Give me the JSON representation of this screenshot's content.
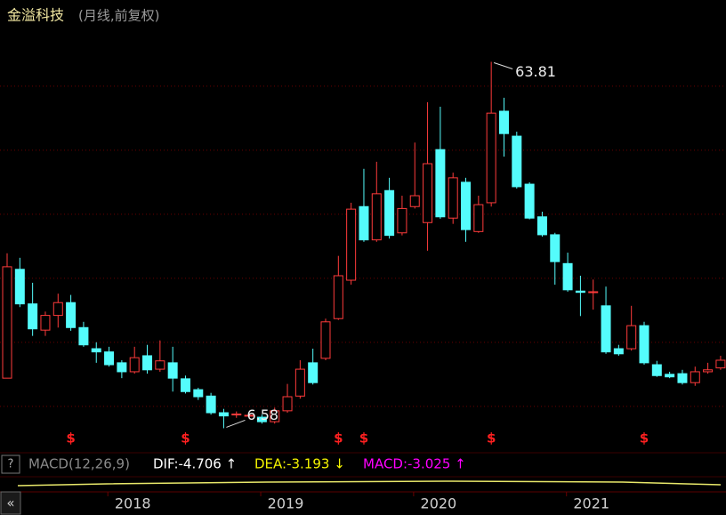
{
  "chart_data": {
    "type": "candlestick",
    "title": "金溢科技",
    "subtitle": "(月线,前复权)",
    "categories": [
      null,
      null,
      null,
      null,
      null,
      null,
      null,
      null,
      null,
      null,
      "2018",
      null,
      null,
      null,
      null,
      null,
      null,
      null,
      null,
      null,
      null,
      null,
      "2019",
      null,
      null,
      null,
      null,
      null,
      null,
      null,
      null,
      null,
      null,
      null,
      "2020",
      null,
      null,
      null,
      null,
      null,
      null,
      null,
      null,
      null,
      null,
      null,
      "2021",
      null,
      null,
      null,
      null,
      null,
      null,
      null,
      null,
      null,
      null
    ],
    "open": [
      14.4,
      31.4,
      26.0,
      21.9,
      24.2,
      26.2,
      22.3,
      19.0,
      18.5,
      16.8,
      15.4,
      17.9,
      15.8,
      16.8,
      14.3,
      12.6,
      11.6,
      9.0,
      8.7,
      8.5,
      8.3,
      7.6,
      9.3,
      11.6,
      16.8,
      17.5,
      23.7,
      29.7,
      41.2,
      36.0,
      43.7,
      37.1,
      41.2,
      38.7,
      50.1,
      39.4,
      45.0,
      37.3,
      41.8,
      56.1,
      52.2,
      44.7,
      39.6,
      36.8,
      32.3,
      28.0,
      27.8,
      25.7,
      19.0,
      19.0,
      22.6,
      16.5,
      15.0,
      15.1,
      13.7,
      15.4,
      16.0
    ],
    "high": [
      33.9,
      33.2,
      29.3,
      24.8,
      27.6,
      27.4,
      23.2,
      20.0,
      19.3,
      17.2,
      19.3,
      19.6,
      20.3,
      19.3,
      14.8,
      12.9,
      12.1,
      9.6,
      9.2,
      9.0,
      8.7,
      9.8,
      13.5,
      17.2,
      19.0,
      23.7,
      33.5,
      41.8,
      47.1,
      48.2,
      45.7,
      42.9,
      51.2,
      57.5,
      56.8,
      46.5,
      45.7,
      42.9,
      63.81,
      58.2,
      52.9,
      45.0,
      40.4,
      37.1,
      34.0,
      30.4,
      29.8,
      28.7,
      19.6,
      25.7,
      23.2,
      17.1,
      15.4,
      15.7,
      16.2,
      16.8,
      17.9
    ],
    "low": [
      14.4,
      25.5,
      21.0,
      21.0,
      22.3,
      21.8,
      19.3,
      16.8,
      16.2,
      14.4,
      15.1,
      15.1,
      15.4,
      12.3,
      12.0,
      11.0,
      8.7,
      6.58,
      8.2,
      8.1,
      7.3,
      7.3,
      9.0,
      11.2,
      13.4,
      17.2,
      23.5,
      29.0,
      35.7,
      35.7,
      36.2,
      36.7,
      40.9,
      34.3,
      39.3,
      38.5,
      35.7,
      37.1,
      41.2,
      49.0,
      44.0,
      39.2,
      36.5,
      29.0,
      27.9,
      24.1,
      25.1,
      18.2,
      17.9,
      18.7,
      16.5,
      14.6,
      14.4,
      13.4,
      13.2,
      15.1,
      15.7
    ],
    "close": [
      31.8,
      26.0,
      22.1,
      24.2,
      26.2,
      22.3,
      19.6,
      18.5,
      16.5,
      15.4,
      17.6,
      15.7,
      17.1,
      14.4,
      12.3,
      11.5,
      9.0,
      8.5,
      8.8,
      8.6,
      7.6,
      9.3,
      11.5,
      15.8,
      13.7,
      23.2,
      30.4,
      40.8,
      36.0,
      43.2,
      36.7,
      40.9,
      42.9,
      47.9,
      39.6,
      45.7,
      37.6,
      41.5,
      55.8,
      52.6,
      44.3,
      39.4,
      36.8,
      32.6,
      28.2,
      27.8,
      27.9,
      18.5,
      18.2,
      22.6,
      16.8,
      14.8,
      14.6,
      13.7,
      15.4,
      15.7,
      17.2
    ],
    "up_color": "#ff3b3b",
    "down_color": "#54fcfc",
    "events": [
      null,
      null,
      null,
      null,
      null,
      "$",
      null,
      null,
      null,
      null,
      null,
      null,
      null,
      null,
      "$",
      null,
      null,
      null,
      null,
      null,
      null,
      null,
      null,
      null,
      null,
      null,
      "$",
      null,
      "$",
      null,
      null,
      null,
      null,
      null,
      null,
      null,
      null,
      null,
      "$",
      null,
      null,
      null,
      null,
      null,
      null,
      null,
      null,
      null,
      null,
      null,
      "$",
      null,
      null,
      null,
      null,
      null,
      null
    ],
    "max_label": "63.81",
    "min_label": "6.58",
    "ylim": [
      4,
      69.3
    ],
    "yticks": [
      10,
      20,
      30,
      40,
      50,
      60
    ],
    "grid": true,
    "indicator": {
      "name": "MACD(12,26,9)",
      "dif": "DIF:-4.706 ↑",
      "dea": "DEA:-3.193 ↓",
      "macd": "MACD:-3.025 ↑"
    }
  }
}
